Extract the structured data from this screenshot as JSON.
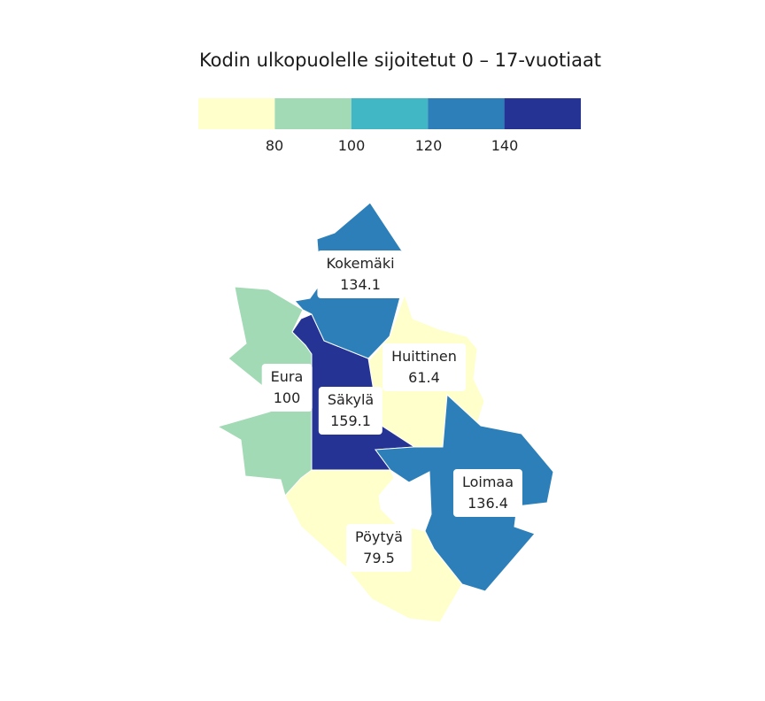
{
  "title": "Kodin ulkopuolelle sijoitetut 0 – 17-vuotiaat",
  "legend": {
    "bins": [
      {
        "color": "#ffffcc"
      },
      {
        "color": "#a1dab4"
      },
      {
        "color": "#41b6c4"
      },
      {
        "color": "#2c7fb8"
      },
      {
        "color": "#253494"
      }
    ],
    "ticks": [
      "80",
      "100",
      "120",
      "140"
    ]
  },
  "regions": [
    {
      "id": "kokemaki",
      "name": "Kokemäki",
      "value": "134.1",
      "color": "#2c7fb8"
    },
    {
      "id": "eura",
      "name": "Eura",
      "value": "100",
      "color": "#a1dab4"
    },
    {
      "id": "huittinen",
      "name": "Huittinen",
      "value": "61.4",
      "color": "#ffffcc"
    },
    {
      "id": "sakyla",
      "name": "Säkylä",
      "value": "159.1",
      "color": "#253494"
    },
    {
      "id": "loimaa",
      "name": "Loimaa",
      "value": "136.4",
      "color": "#2c7fb8"
    },
    {
      "id": "poytya",
      "name": "Pöytyä",
      "value": "79.5",
      "color": "#ffffcc"
    }
  ]
}
